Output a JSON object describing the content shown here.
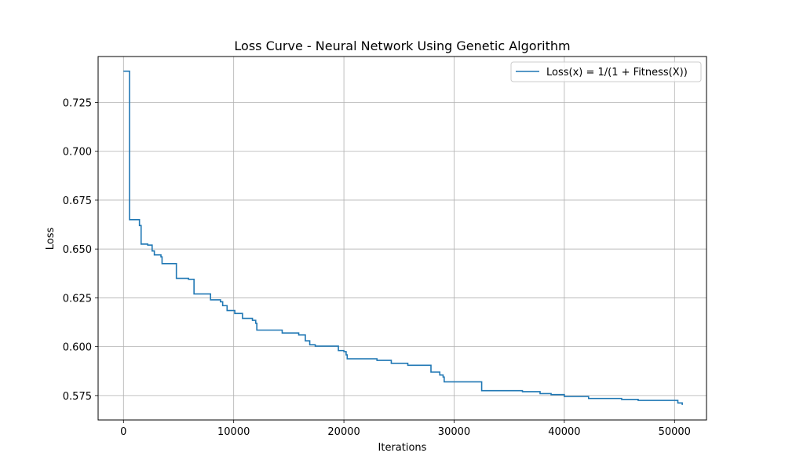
{
  "chart_data": {
    "type": "line",
    "title": "Loss Curve - Neural Network Using Genetic Algorithm",
    "xlabel": "Iterations",
    "ylabel": "Loss",
    "xlim": [
      -2300,
      52900
    ],
    "ylim": [
      0.5625,
      0.7485
    ],
    "xticks": [
      0,
      10000,
      20000,
      30000,
      40000,
      50000
    ],
    "xtick_labels": [
      "0",
      "10000",
      "20000",
      "30000",
      "40000",
      "50000"
    ],
    "yticks": [
      0.575,
      0.6,
      0.625,
      0.65,
      0.675,
      0.7,
      0.725
    ],
    "ytick_labels": [
      "0.575",
      "0.600",
      "0.625",
      "0.650",
      "0.675",
      "0.700",
      "0.725"
    ],
    "grid": true,
    "legend_position": "top-right",
    "series": [
      {
        "name": "Loss(x) = 1/(1 + Fitness(X))",
        "color": "#1f77b4",
        "step": true,
        "x": [
          0,
          400,
          550,
          1300,
          1450,
          1600,
          2200,
          2600,
          2800,
          3400,
          3500,
          4800,
          5900,
          6400,
          6500,
          7900,
          8800,
          9000,
          9400,
          10100,
          10800,
          11700,
          12000,
          12100,
          14100,
          14400,
          15900,
          16500,
          16900,
          17400,
          19500,
          20000,
          20200,
          20300,
          23000,
          24300,
          25800,
          27900,
          28700,
          29000,
          29100,
          32300,
          32500,
          36000,
          36200,
          37800,
          38800,
          40000,
          42200,
          45200,
          46700,
          50300,
          50700
        ],
        "y": [
          0.741,
          0.741,
          0.665,
          0.665,
          0.662,
          0.6525,
          0.652,
          0.649,
          0.647,
          0.646,
          0.6425,
          0.635,
          0.6345,
          0.627,
          0.627,
          0.624,
          0.623,
          0.621,
          0.6185,
          0.617,
          0.6145,
          0.6135,
          0.612,
          0.6085,
          0.6085,
          0.607,
          0.606,
          0.603,
          0.601,
          0.6003,
          0.598,
          0.5975,
          0.5958,
          0.5938,
          0.593,
          0.5915,
          0.5905,
          0.587,
          0.5855,
          0.5845,
          0.582,
          0.582,
          0.5775,
          0.5775,
          0.577,
          0.576,
          0.5755,
          0.5745,
          0.5735,
          0.573,
          0.5725,
          0.5712,
          0.5702
        ]
      }
    ]
  }
}
